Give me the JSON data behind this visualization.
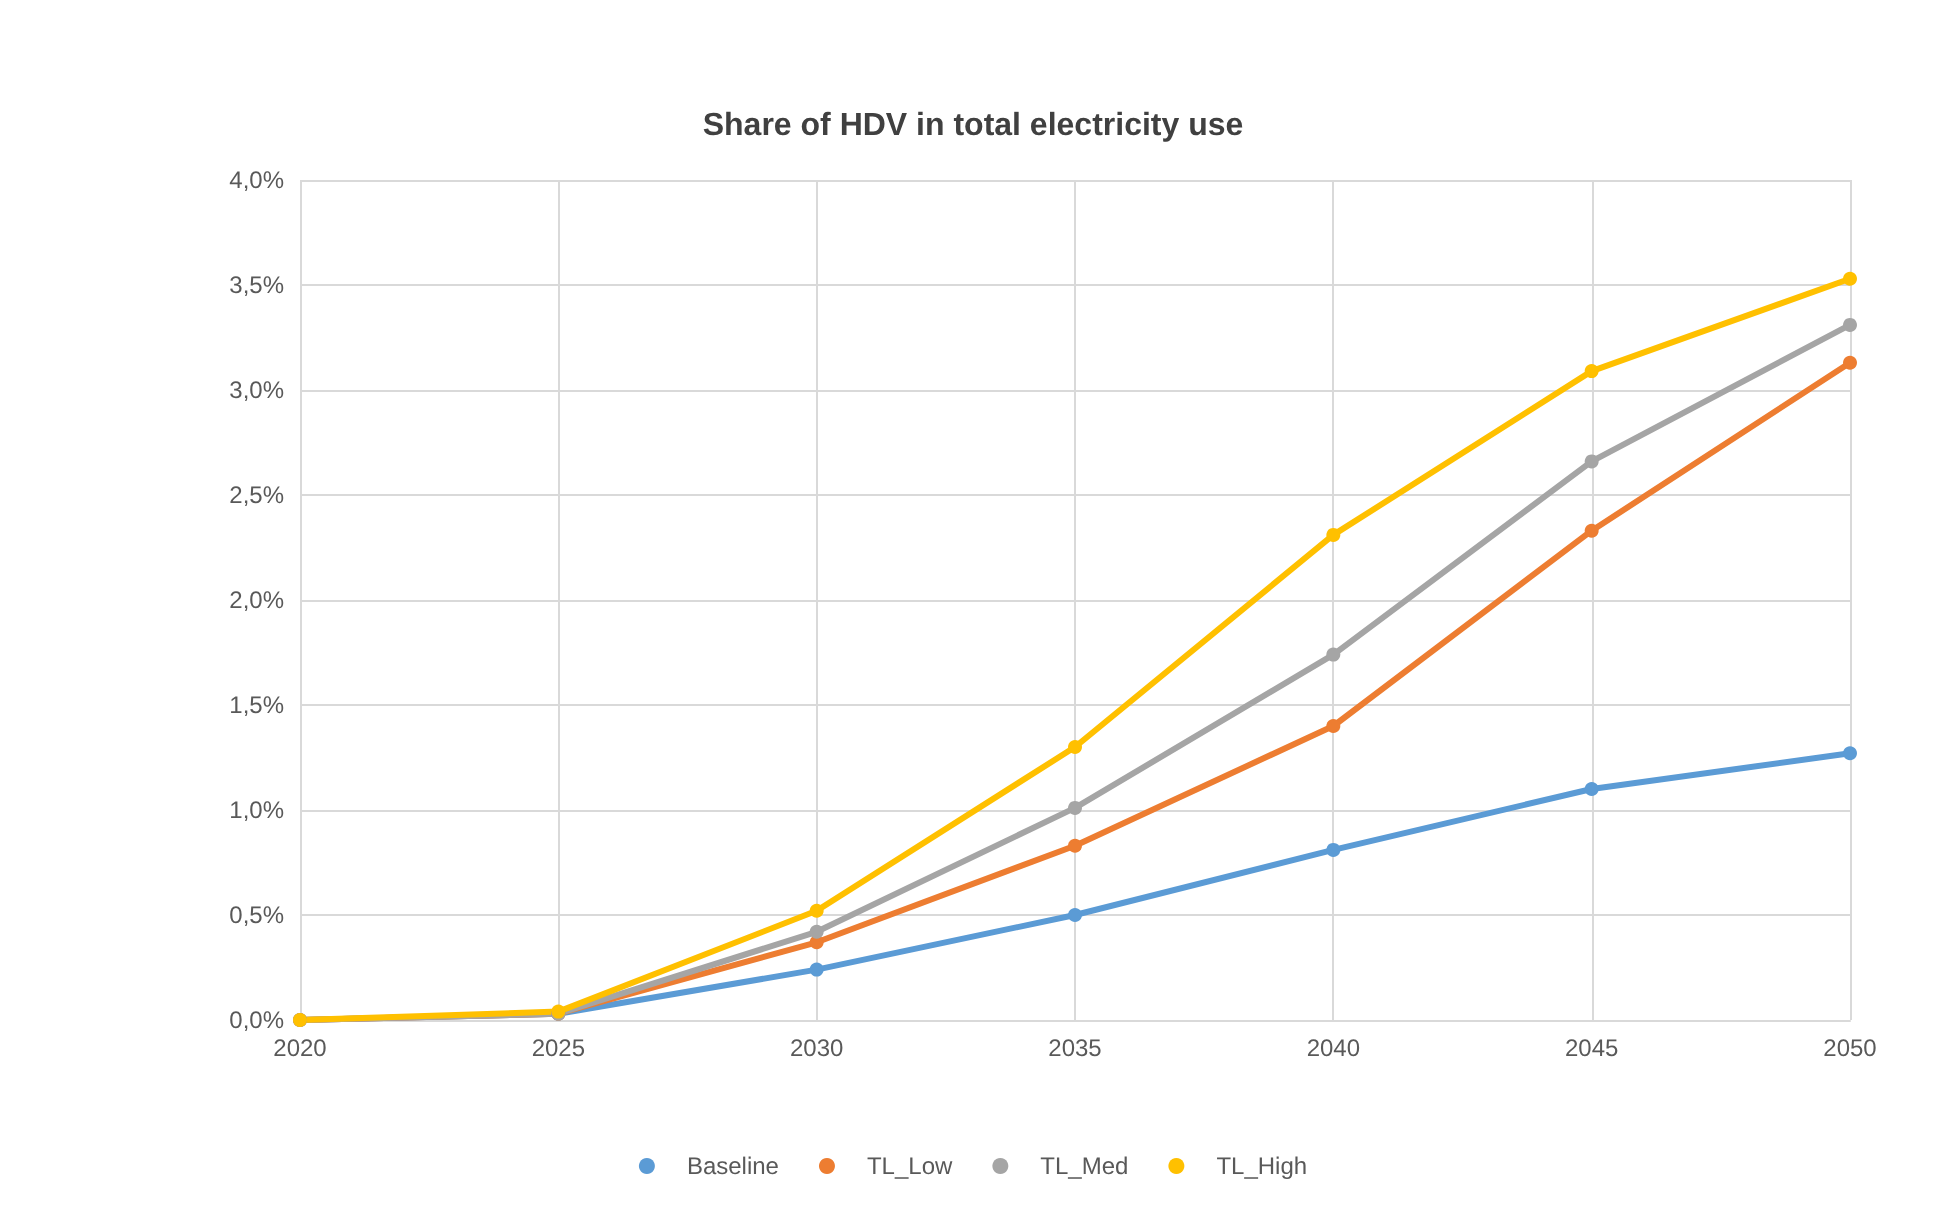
{
  "chart_data": {
    "type": "line",
    "title": "Share of HDV in total electricity use",
    "x": [
      2020,
      2025,
      2030,
      2035,
      2040,
      2045,
      2050
    ],
    "series": [
      {
        "name": "Baseline",
        "color": "#5b9bd5",
        "values": [
          0,
          0.03,
          0.24,
          0.5,
          0.81,
          1.1,
          1.27
        ]
      },
      {
        "name": "TL_Low",
        "color": "#ed7d31",
        "values": [
          0,
          0.03,
          0.37,
          0.83,
          1.4,
          2.33,
          3.13
        ]
      },
      {
        "name": "TL_Med",
        "color": "#a5a5a5",
        "values": [
          0,
          0.03,
          0.42,
          1.01,
          1.74,
          2.66,
          3.31
        ]
      },
      {
        "name": "TL_High",
        "color": "#ffc000",
        "values": [
          0,
          0.04,
          0.52,
          1.3,
          2.31,
          3.09,
          3.53
        ]
      }
    ],
    "xlim": [
      2020,
      2050
    ],
    "xticks": [
      2020,
      2025,
      2030,
      2035,
      2040,
      2045,
      2050
    ],
    "ylim": [
      0,
      4
    ],
    "yticks": [
      {
        "value": 0,
        "label": "0,0%"
      },
      {
        "value": 0.5,
        "label": "0,5%"
      },
      {
        "value": 1,
        "label": "1,0%"
      },
      {
        "value": 1.5,
        "label": "1,5%"
      },
      {
        "value": 2,
        "label": "2,0%"
      },
      {
        "value": 2.5,
        "label": "2,5%"
      },
      {
        "value": 3,
        "label": "3,0%"
      },
      {
        "value": 3.5,
        "label": "3,5%"
      },
      {
        "value": 4,
        "label": "4,0%"
      }
    ],
    "grid": true,
    "legend": "bottom",
    "marker": "circle",
    "line_style": "solid"
  }
}
